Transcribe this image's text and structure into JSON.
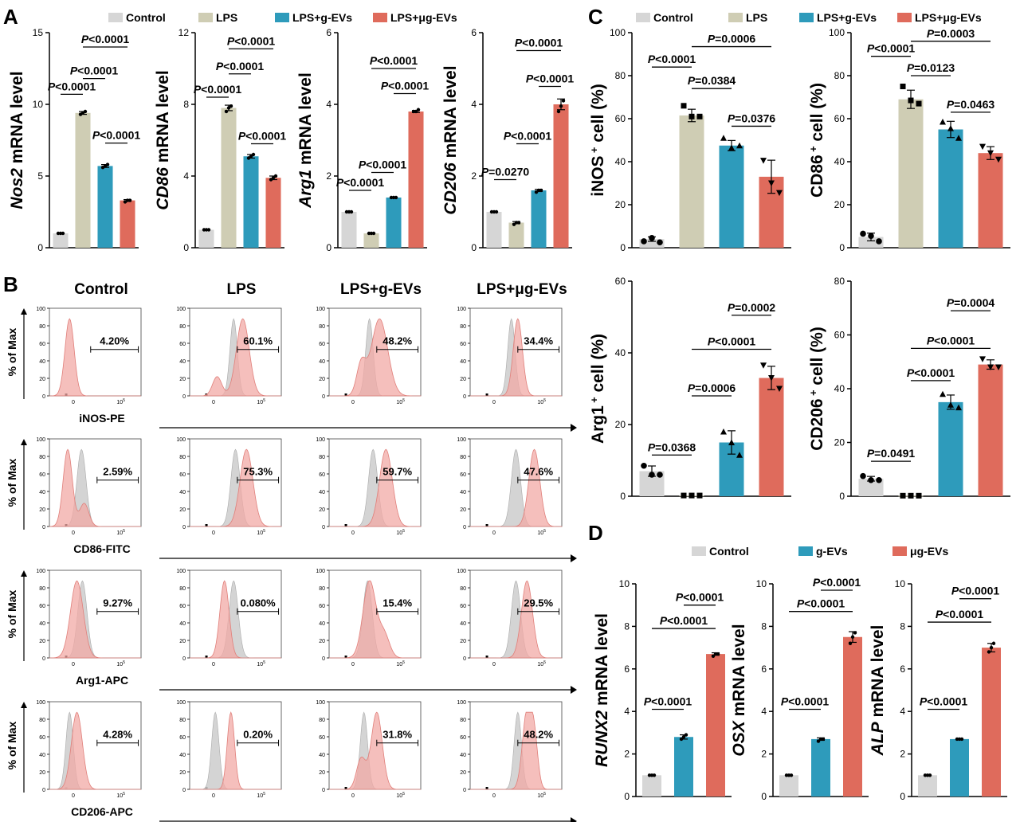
{
  "colors": {
    "control": "#d6d6d6",
    "lps": "#cfcdb4",
    "g": "#2e9bbb",
    "ug": "#df6b5c",
    "ctrlHist": "#cccccc",
    "treatHist": "#f1a9a6"
  },
  "legend_ac": [
    "Control",
    "LPS",
    "LPS+g-EVs",
    "LPS+μg-EVs"
  ],
  "legend_d": [
    "Control",
    "g-EVs",
    "μg-EVs"
  ],
  "panel_labels": {
    "a": "A",
    "b": "B",
    "c": "C",
    "d": "D"
  },
  "a_charts": [
    {
      "id": "a1",
      "type": "bar",
      "ylabel_italic": "Nos2",
      "ylabel_rest": " mRNA level",
      "yticks": [
        "0",
        "5",
        "10",
        "15"
      ],
      "ylim": [
        0,
        15
      ],
      "values": [
        1,
        9.4,
        5.7,
        3.3
      ],
      "points": [
        [
          1,
          1,
          1
        ],
        [
          9.3,
          9.4,
          9.5
        ],
        [
          5.6,
          5.7,
          5.8
        ],
        [
          3.2,
          3.3,
          3.3
        ]
      ],
      "annotations": [
        {
          "text": "P<0.0001",
          "bars": [
            0,
            1
          ],
          "y": 10.7
        },
        {
          "text": "P<0.0001",
          "bars": [
            1,
            3
          ],
          "y": 14
        },
        {
          "text": "P<0.0001",
          "bars": [
            1,
            2
          ],
          "y": 11.8
        },
        {
          "text": "P<0.0001",
          "bars": [
            2,
            3
          ],
          "y": 7.3
        }
      ]
    },
    {
      "id": "a2",
      "type": "bar",
      "ylabel_italic": "CD86",
      "ylabel_rest": " mRNA level",
      "yticks": [
        "0",
        "4",
        "8",
        "12"
      ],
      "ylim": [
        0,
        12
      ],
      "values": [
        1,
        7.8,
        5.1,
        3.9
      ],
      "points": [
        [
          1,
          1,
          1
        ],
        [
          7.6,
          7.8,
          7.9
        ],
        [
          5.0,
          5.1,
          5.2
        ],
        [
          3.8,
          3.9,
          4.0
        ]
      ],
      "annotations": [
        {
          "text": "P<0.0001",
          "bars": [
            0,
            1
          ],
          "y": 8.4
        },
        {
          "text": "P<0.0001",
          "bars": [
            1,
            3
          ],
          "y": 11.1
        },
        {
          "text": "P<0.0001",
          "bars": [
            1,
            2
          ],
          "y": 9.7
        },
        {
          "text": "P<0.0001",
          "bars": [
            2,
            3
          ],
          "y": 5.8
        }
      ]
    },
    {
      "id": "a3",
      "type": "bar",
      "ylabel_italic": "Arg1",
      "ylabel_rest": " mRNA level",
      "yticks": [
        "0",
        "2",
        "4",
        "6"
      ],
      "ylim": [
        0,
        6
      ],
      "values": [
        1,
        0.4,
        1.4,
        3.8
      ],
      "points": [
        [
          1,
          1,
          1
        ],
        [
          0.4,
          0.4,
          0.4
        ],
        [
          1.4,
          1.4,
          1.4
        ],
        [
          3.8,
          3.8,
          3.85
        ]
      ],
      "annotations": [
        {
          "text": "P<0.0001",
          "bars": [
            0,
            1
          ],
          "y": 1.6
        },
        {
          "text": "P<0.0001",
          "bars": [
            1,
            2
          ],
          "y": 2.1
        },
        {
          "text": "P<0.0001",
          "bars": [
            1,
            3
          ],
          "y": 5.0
        },
        {
          "text": "P<0.0001",
          "bars": [
            2,
            3
          ],
          "y": 4.3
        }
      ]
    },
    {
      "id": "a4",
      "type": "bar",
      "ylabel_italic": "CD206",
      "ylabel_rest": " mRNA level",
      "yticks": [
        "0",
        "2",
        "4",
        "6"
      ],
      "ylim": [
        0,
        6
      ],
      "values": [
        1,
        0.7,
        1.6,
        4.0
      ],
      "points": [
        [
          1,
          1,
          1
        ],
        [
          0.65,
          0.7,
          0.7
        ],
        [
          1.55,
          1.6,
          1.6
        ],
        [
          3.8,
          3.95,
          4.1
        ]
      ],
      "annotations": [
        {
          "text": "P=0.0270",
          "bars": [
            0,
            1
          ],
          "y": 1.9
        },
        {
          "text": "P<0.0001",
          "bars": [
            1,
            2
          ],
          "y": 2.9
        },
        {
          "text": "P<0.0001",
          "bars": [
            1,
            3
          ],
          "y": 5.5
        },
        {
          "text": "P<0.0001",
          "bars": [
            2,
            3
          ],
          "y": 4.5
        }
      ]
    }
  ],
  "c_charts": [
    {
      "id": "c1",
      "type": "bar",
      "ylabel_main": "iNOS",
      "ylabel_sup": "+",
      "ylabel_rest": " cell (%)",
      "yticks": [
        "0",
        "20",
        "40",
        "60",
        "80",
        "100"
      ],
      "ylim": [
        0,
        100
      ],
      "values": [
        4,
        61.5,
        47.5,
        33
      ],
      "points": [
        [
          3,
          4.5,
          2.5
        ],
        [
          66,
          61,
          61
        ],
        [
          51,
          46.5,
          47.5
        ],
        [
          40.5,
          30,
          25.5
        ]
      ],
      "annotations": [
        {
          "text": "P<0.0001",
          "bars": [
            0,
            1
          ],
          "y": 84
        },
        {
          "text": "P=0.0006",
          "bars": [
            1,
            3
          ],
          "y": 93.5
        },
        {
          "text": "P=0.0384",
          "bars": [
            1,
            2
          ],
          "y": 74
        },
        {
          "text": "P=0.0376",
          "bars": [
            2,
            3
          ],
          "y": 56.5
        }
      ]
    },
    {
      "id": "c2",
      "type": "bar",
      "ylabel_main": "CD86",
      "ylabel_sup": "+",
      "ylabel_rest": " cell (%)",
      "yticks": [
        "0",
        "20",
        "40",
        "60",
        "80",
        "100"
      ],
      "ylim": [
        0,
        100
      ],
      "values": [
        5,
        69,
        55,
        44
      ],
      "points": [
        [
          6.5,
          5.5,
          3
        ],
        [
          75,
          68.5,
          67
        ],
        [
          58.5,
          55.5,
          51
        ],
        [
          47,
          44,
          41
        ]
      ],
      "annotations": [
        {
          "text": "P<0.0001",
          "bars": [
            0,
            1
          ],
          "y": 89
        },
        {
          "text": "P=0.0003",
          "bars": [
            1,
            3
          ],
          "y": 96
        },
        {
          "text": "P=0.0123",
          "bars": [
            1,
            2
          ],
          "y": 80
        },
        {
          "text": "P=0.0463",
          "bars": [
            2,
            3
          ],
          "y": 63
        }
      ]
    },
    {
      "id": "c3",
      "type": "bar",
      "ylabel_main": "Arg1",
      "ylabel_sup": "+",
      "ylabel_rest": " cell (%)",
      "yticks": [
        "0",
        "20",
        "40",
        "60"
      ],
      "ylim": [
        0,
        60
      ],
      "values": [
        7,
        0.2,
        15,
        33
      ],
      "points": [
        [
          8.5,
          6,
          6
        ],
        [
          0.2,
          0.2,
          0.2
        ],
        [
          18,
          15,
          11.5
        ],
        [
          36.5,
          33,
          30
        ]
      ],
      "annotations": [
        {
          "text": "P=0.0368",
          "bars": [
            0,
            1
          ],
          "y": 11.5
        },
        {
          "text": "P=0.0006",
          "bars": [
            1,
            2
          ],
          "y": 28
        },
        {
          "text": "P<0.0001",
          "bars": [
            1,
            3
          ],
          "y": 41
        },
        {
          "text": "P=0.0002",
          "bars": [
            2,
            3
          ],
          "y": 50.5
        }
      ]
    },
    {
      "id": "c4",
      "type": "bar",
      "ylabel_main": "CD206",
      "ylabel_sup": "+",
      "ylabel_rest": " cell (%)",
      "yticks": [
        "0",
        "20",
        "40",
        "60",
        "80"
      ],
      "ylim": [
        0,
        80
      ],
      "values": [
        6.5,
        0.2,
        35,
        49
      ],
      "points": [
        [
          7.5,
          6,
          6
        ],
        [
          0.2,
          0.2,
          0.2
        ],
        [
          38,
          34,
          33
        ],
        [
          51,
          48,
          48
        ]
      ],
      "annotations": [
        {
          "text": "P=0.0491",
          "bars": [
            0,
            1
          ],
          "y": 13
        },
        {
          "text": "P<0.0001",
          "bars": [
            1,
            2
          ],
          "y": 43
        },
        {
          "text": "P<0.0001",
          "bars": [
            1,
            3
          ],
          "y": 55
        },
        {
          "text": "P=0.0004",
          "bars": [
            2,
            3
          ],
          "y": 69
        }
      ]
    }
  ],
  "d_charts": [
    {
      "id": "d1",
      "type": "bar",
      "ylabel_italic": "RUNX2",
      "ylabel_rest": " mRNA level",
      "yticks": [
        "0",
        "2",
        "4",
        "6",
        "8",
        "10"
      ],
      "ylim": [
        0,
        10
      ],
      "values": [
        1,
        2.8,
        6.7
      ],
      "points": [
        [
          1,
          1,
          1
        ],
        [
          2.7,
          2.8,
          2.9
        ],
        [
          6.6,
          6.7,
          6.7
        ]
      ],
      "annotations": [
        {
          "text": "P<0.0001",
          "bars": [
            0,
            1
          ],
          "y": 4.1
        },
        {
          "text": "P<0.0001",
          "bars": [
            0,
            2
          ],
          "y": 7.9
        },
        {
          "text": "P<0.0001",
          "bars": [
            1,
            2
          ],
          "y": 9.0
        }
      ]
    },
    {
      "id": "d2",
      "type": "bar",
      "ylabel_italic": "OSX",
      "ylabel_rest": " mRNA level",
      "yticks": [
        "0",
        "2",
        "4",
        "6",
        "8",
        "10"
      ],
      "ylim": [
        0,
        10
      ],
      "values": [
        1,
        2.7,
        7.5
      ],
      "points": [
        [
          1,
          1,
          1
        ],
        [
          2.6,
          2.7,
          2.7
        ],
        [
          7.2,
          7.5,
          7.7
        ]
      ],
      "annotations": [
        {
          "text": "P<0.0001",
          "bars": [
            0,
            1
          ],
          "y": 4.1
        },
        {
          "text": "P<0.0001",
          "bars": [
            0,
            2
          ],
          "y": 8.7
        },
        {
          "text": "P<0.0001",
          "bars": [
            1,
            2
          ],
          "y": 9.7
        }
      ]
    },
    {
      "id": "d3",
      "type": "bar",
      "ylabel_italic": "ALP",
      "ylabel_rest": " mRNA level",
      "yticks": [
        "0",
        "2",
        "4",
        "6",
        "8",
        "10"
      ],
      "ylim": [
        0,
        10
      ],
      "values": [
        1,
        2.7,
        7.0
      ],
      "points": [
        [
          1,
          1,
          1
        ],
        [
          2.7,
          2.7,
          2.7
        ],
        [
          6.8,
          7.0,
          7.2
        ]
      ],
      "annotations": [
        {
          "text": "P<0.0001",
          "bars": [
            0,
            1
          ],
          "y": 4.1
        },
        {
          "text": "P<0.0001",
          "bars": [
            0,
            2
          ],
          "y": 8.2
        },
        {
          "text": "P<0.0001",
          "bars": [
            1,
            2
          ],
          "y": 9.3
        }
      ]
    }
  ],
  "flow": {
    "columns": [
      "Control",
      "LPS",
      "LPS+g-EVs",
      "LPS+μg-EVs"
    ],
    "ylabel": "% of Max",
    "yticks": [
      "0",
      "20",
      "40",
      "60",
      "80",
      "100"
    ],
    "xticks": [
      "0",
      "10",
      "5"
    ],
    "rows": [
      {
        "marker": "iNOS-PE",
        "percents": [
          "4.20%",
          "60.1%",
          "48.2%",
          "34.4%"
        ]
      },
      {
        "marker": "CD86-FITC",
        "percents": [
          "2.59%",
          "75.3%",
          "59.7%",
          "47.6%"
        ]
      },
      {
        "marker": "Arg1-APC",
        "percents": [
          "9.27%",
          "0.080%",
          "15.4%",
          "29.5%"
        ]
      },
      {
        "marker": "CD206-APC",
        "percents": [
          "4.28%",
          "0.20%",
          "31.8%",
          "48.2%"
        ]
      }
    ]
  }
}
